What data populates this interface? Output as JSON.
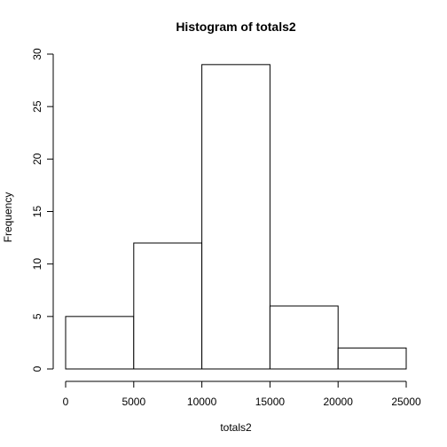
{
  "chart_data": {
    "type": "bar",
    "title": "Histogram of totals2",
    "xlabel": "totals2",
    "ylabel": "Frequency",
    "bins": [
      {
        "from": 0,
        "to": 5000,
        "count": 5
      },
      {
        "from": 5000,
        "to": 10000,
        "count": 12
      },
      {
        "from": 10000,
        "to": 15000,
        "count": 29
      },
      {
        "from": 15000,
        "to": 20000,
        "count": 6
      },
      {
        "from": 20000,
        "to": 25000,
        "count": 2
      }
    ],
    "xlim": [
      0,
      25000
    ],
    "ylim": [
      0,
      30
    ],
    "x_ticks": [
      0,
      5000,
      10000,
      15000,
      20000,
      25000
    ],
    "x_tick_labels": [
      "0",
      "5000",
      "10000",
      "15000",
      "20000",
      "25000"
    ],
    "y_ticks": [
      0,
      5,
      10,
      15,
      20,
      25,
      30
    ],
    "y_tick_labels": [
      "0",
      "5",
      "10",
      "15",
      "20",
      "25",
      "30"
    ],
    "grid": false,
    "legend": "none",
    "bar_fill": "#ffffff",
    "bar_stroke": "#000000"
  }
}
